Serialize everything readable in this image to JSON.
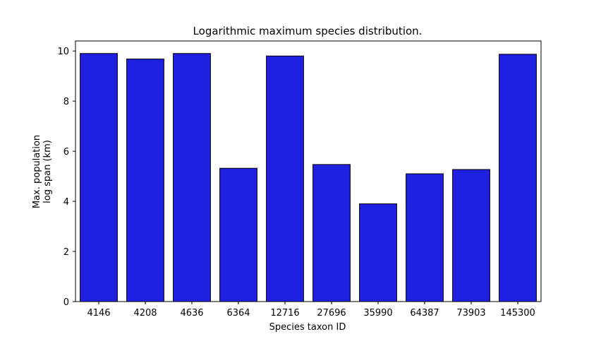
{
  "colors": {
    "bar_fill": "#2020e0",
    "bar_edge": "#000000",
    "axis": "#000000"
  },
  "chart_data": {
    "type": "bar",
    "title": "Logarithmic maximum species distribution.",
    "xlabel": "Species taxon ID",
    "ylabel_lines": [
      "Max. population",
      "log span (km)"
    ],
    "categories": [
      "4146",
      "4208",
      "4636",
      "6364",
      "12716",
      "27696",
      "35990",
      "64387",
      "73903",
      "145300"
    ],
    "values": [
      9.9,
      9.68,
      9.9,
      5.32,
      9.8,
      5.47,
      3.9,
      5.1,
      5.27,
      9.87
    ],
    "ylim": [
      0,
      10.4
    ],
    "yticks": [
      0,
      2,
      4,
      6,
      8,
      10
    ],
    "grid": false,
    "legend": "none"
  }
}
